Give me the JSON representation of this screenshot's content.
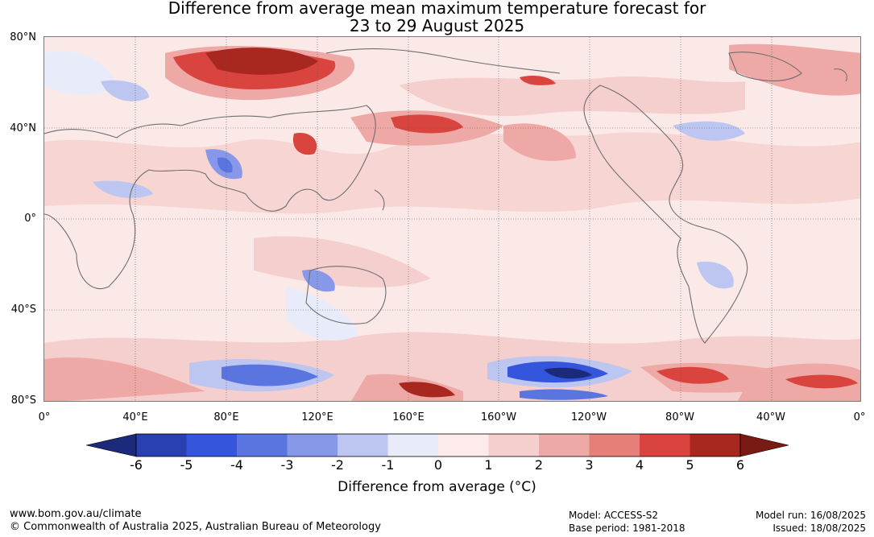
{
  "header": {
    "title_line1": "Difference from average mean maximum temperature forecast for",
    "title_line2": "23 to 29 August 2025"
  },
  "map": {
    "lat_labels": [
      "80°N",
      "40°N",
      "0°",
      "40°S",
      "80°S"
    ],
    "lon_labels": [
      "0°",
      "40°E",
      "80°E",
      "120°E",
      "160°E",
      "160°W",
      "120°W",
      "80°W",
      "40°W",
      "0°"
    ],
    "colors": {
      "ocean_base": "#fbe9e8",
      "land_outline": "#6e6e6e",
      "grid": "#555555"
    }
  },
  "colorbar": {
    "ticks": [
      "-6",
      "-5",
      "-4",
      "-3",
      "-2",
      "-1",
      "0",
      "1",
      "2",
      "3",
      "4",
      "5",
      "6"
    ],
    "colors": [
      "#1b2a7a",
      "#2a3fb0",
      "#3555dc",
      "#5a75e0",
      "#8898e8",
      "#bcc6f0",
      "#e8ecfa",
      "#fcebea",
      "#f5cfcd",
      "#eea9a6",
      "#e67f7a",
      "#d9453e",
      "#a8281f",
      "#7a1a14"
    ],
    "title": "Difference from average (°C)"
  },
  "footer": {
    "website": "www.bom.gov.au/climate",
    "copyright": "© Commonwealth of Australia 2025, Australian Bureau of Meteorology",
    "model": "Model: ACCESS-S2",
    "base_period": "Base period: 1981-2018",
    "model_run": "Model run: 16/08/2025",
    "issued": "Issued: 18/08/2025"
  }
}
